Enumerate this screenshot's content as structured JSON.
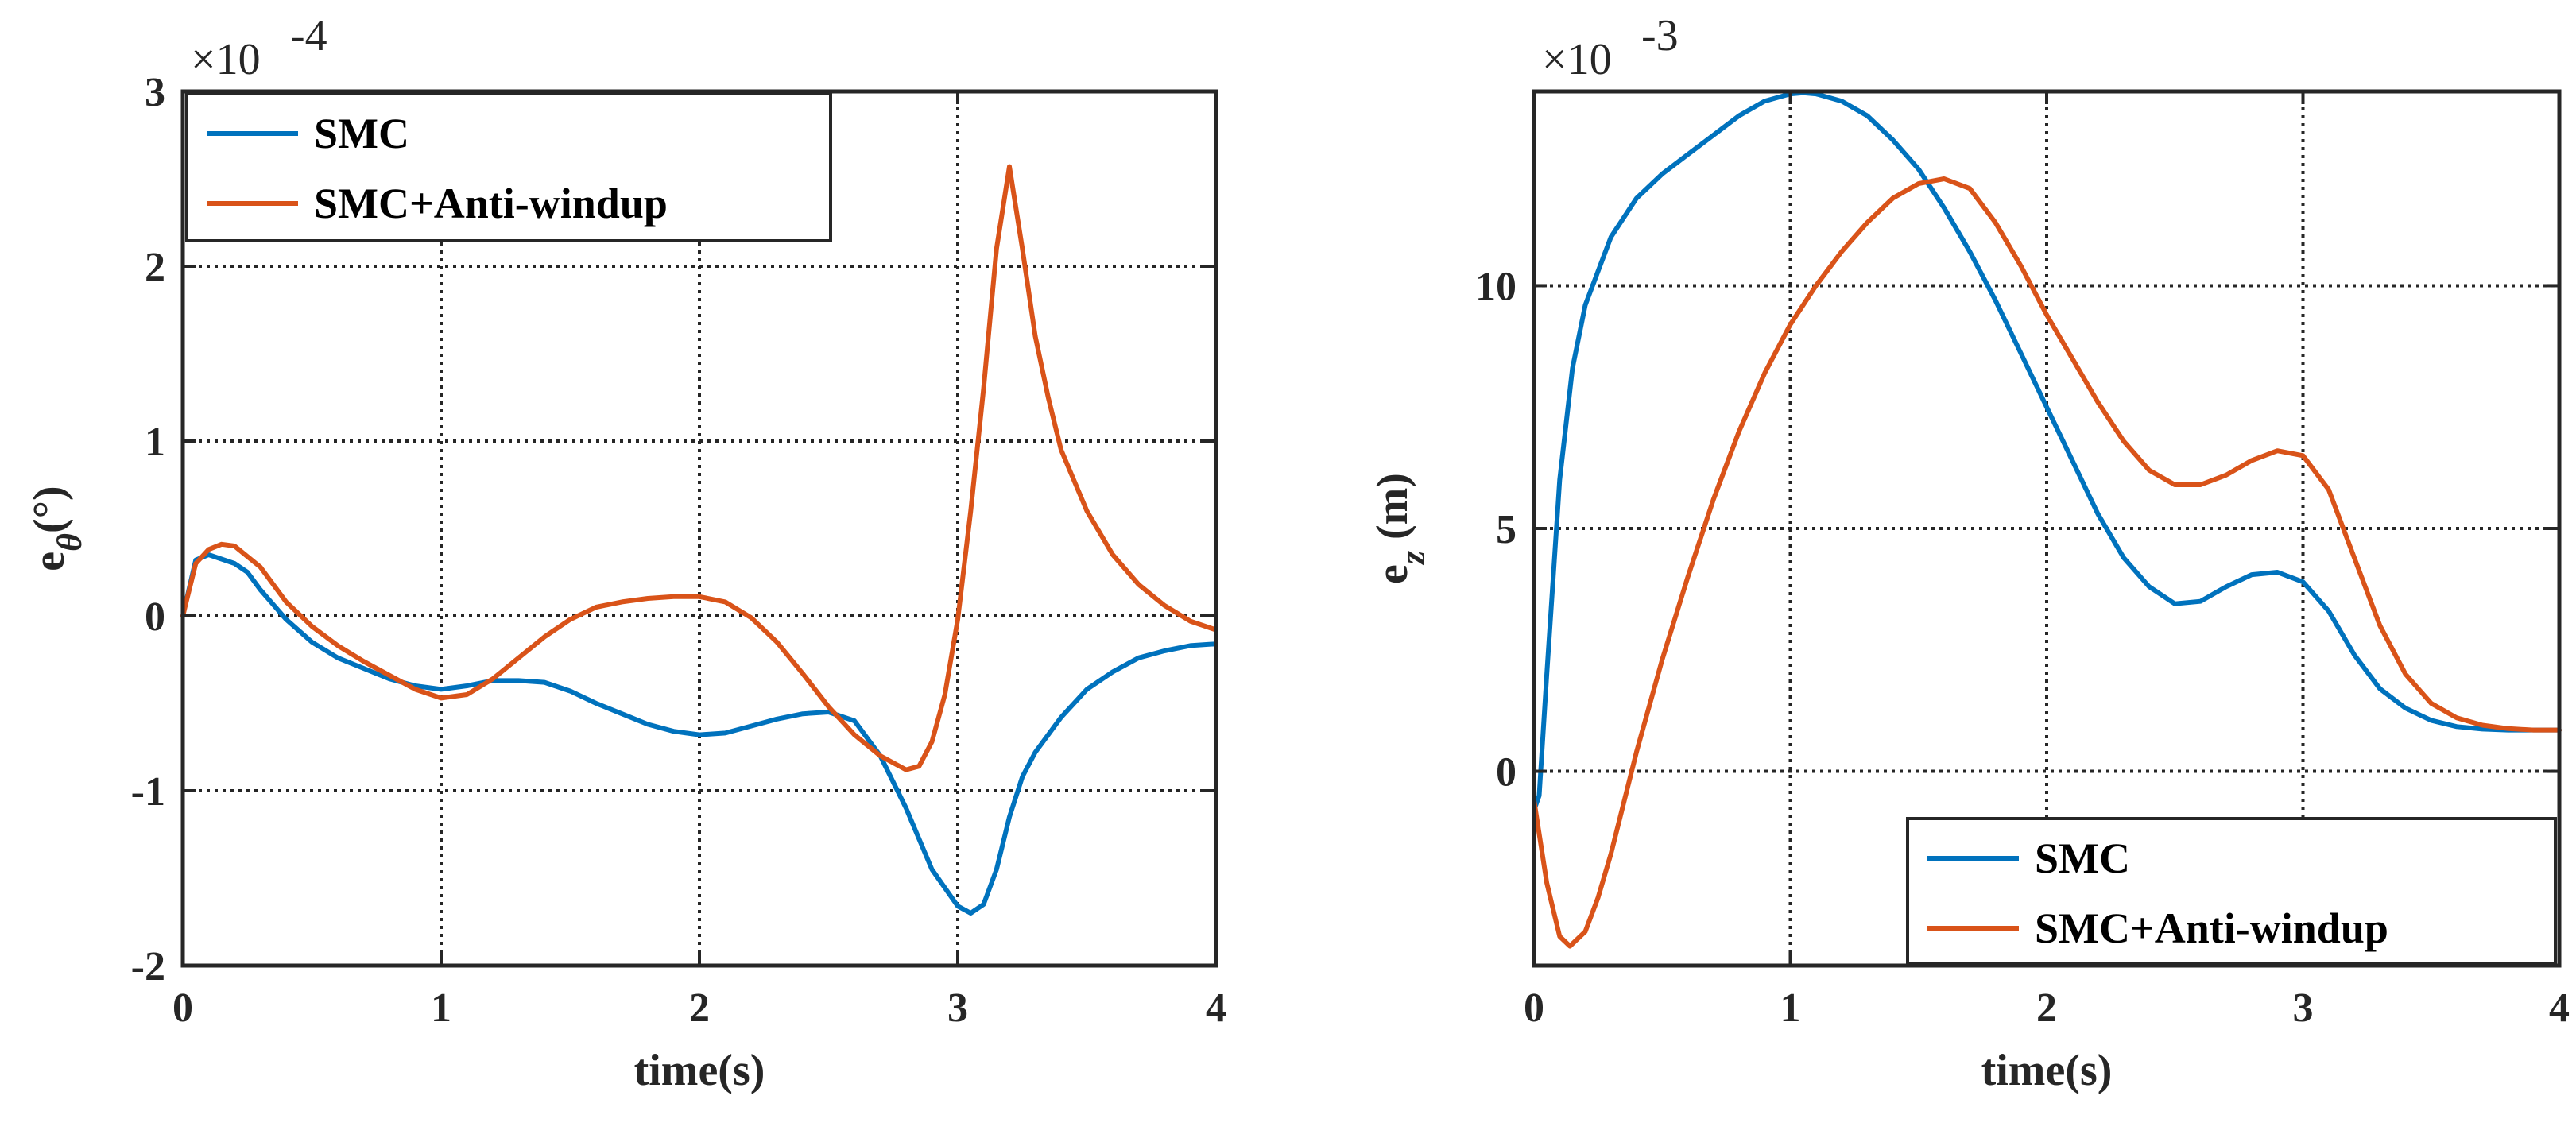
{
  "chart_data": [
    {
      "type": "line",
      "xlabel": "time(s)",
      "ylabel_base": "e",
      "ylabel_sub": "θ",
      "ylabel_unit": "(°)",
      "exponent_label": "×10",
      "exponent_power": "-4",
      "xlim": [
        0,
        4
      ],
      "ylim": [
        -2,
        3
      ],
      "xticks": [
        0,
        1,
        2,
        3,
        4
      ],
      "yticks": [
        -2,
        -1,
        0,
        1,
        2,
        3
      ],
      "grid": true,
      "legend_position": "top-left",
      "series": [
        {
          "name": "SMC",
          "color": "#0072BD",
          "x": [
            0,
            0.05,
            0.1,
            0.2,
            0.25,
            0.3,
            0.4,
            0.5,
            0.6,
            0.7,
            0.8,
            0.9,
            1.0,
            1.1,
            1.2,
            1.3,
            1.4,
            1.5,
            1.6,
            1.7,
            1.8,
            1.9,
            2.0,
            2.1,
            2.2,
            2.3,
            2.4,
            2.5,
            2.6,
            2.7,
            2.8,
            2.9,
            3.0,
            3.05,
            3.1,
            3.15,
            3.2,
            3.25,
            3.3,
            3.4,
            3.5,
            3.6,
            3.7,
            3.8,
            3.9,
            4.0
          ],
          "y": [
            0.0,
            0.32,
            0.35,
            0.3,
            0.25,
            0.15,
            -0.02,
            -0.15,
            -0.24,
            -0.3,
            -0.36,
            -0.4,
            -0.42,
            -0.4,
            -0.37,
            -0.37,
            -0.38,
            -0.43,
            -0.5,
            -0.56,
            -0.62,
            -0.66,
            -0.68,
            -0.67,
            -0.63,
            -0.59,
            -0.56,
            -0.55,
            -0.6,
            -0.8,
            -1.1,
            -1.45,
            -1.66,
            -1.7,
            -1.65,
            -1.45,
            -1.15,
            -0.92,
            -0.78,
            -0.58,
            -0.42,
            -0.32,
            -0.24,
            -0.2,
            -0.17,
            -0.16
          ]
        },
        {
          "name": "SMC+Anti-windup",
          "color": "#D95319",
          "x": [
            0,
            0.05,
            0.1,
            0.15,
            0.2,
            0.3,
            0.4,
            0.5,
            0.6,
            0.7,
            0.8,
            0.9,
            1.0,
            1.1,
            1.2,
            1.3,
            1.4,
            1.5,
            1.6,
            1.7,
            1.8,
            1.9,
            2.0,
            2.1,
            2.2,
            2.3,
            2.4,
            2.5,
            2.6,
            2.7,
            2.8,
            2.85,
            2.9,
            2.95,
            3.0,
            3.05,
            3.1,
            3.15,
            3.2,
            3.25,
            3.3,
            3.35,
            3.4,
            3.5,
            3.6,
            3.7,
            3.8,
            3.9,
            4.0
          ],
          "y": [
            0.0,
            0.3,
            0.38,
            0.41,
            0.4,
            0.28,
            0.08,
            -0.06,
            -0.17,
            -0.26,
            -0.34,
            -0.42,
            -0.47,
            -0.45,
            -0.36,
            -0.24,
            -0.12,
            -0.02,
            0.05,
            0.08,
            0.1,
            0.11,
            0.11,
            0.08,
            -0.01,
            -0.15,
            -0.33,
            -0.52,
            -0.68,
            -0.8,
            -0.88,
            -0.86,
            -0.72,
            -0.45,
            -0.02,
            0.6,
            1.3,
            2.1,
            2.57,
            2.1,
            1.6,
            1.25,
            0.95,
            0.6,
            0.35,
            0.18,
            0.06,
            -0.03,
            -0.08
          ]
        }
      ]
    },
    {
      "type": "line",
      "xlabel": "time(s)",
      "ylabel_base": "e",
      "ylabel_sub": "z",
      "ylabel_unit": " (m)",
      "exponent_label": "×10",
      "exponent_power": "-3",
      "xlim": [
        0,
        4
      ],
      "ylim": [
        -4,
        14
      ],
      "xticks": [
        0,
        1,
        2,
        3,
        4
      ],
      "yticks": [
        0,
        5,
        10
      ],
      "grid": true,
      "legend_position": "bottom-right",
      "series": [
        {
          "name": "SMC",
          "color": "#0072BD",
          "x": [
            0,
            0.02,
            0.05,
            0.1,
            0.15,
            0.2,
            0.3,
            0.4,
            0.5,
            0.6,
            0.7,
            0.8,
            0.9,
            1.0,
            1.05,
            1.1,
            1.2,
            1.3,
            1.4,
            1.5,
            1.6,
            1.7,
            1.8,
            1.9,
            2.0,
            2.1,
            2.2,
            2.3,
            2.4,
            2.5,
            2.6,
            2.7,
            2.8,
            2.9,
            3.0,
            3.1,
            3.2,
            3.3,
            3.4,
            3.5,
            3.6,
            3.7,
            3.8,
            3.9,
            4.0
          ],
          "y": [
            -0.8,
            -0.5,
            2.0,
            6.0,
            8.3,
            9.6,
            11.0,
            11.8,
            12.3,
            12.7,
            13.1,
            13.5,
            13.8,
            13.95,
            13.97,
            13.95,
            13.8,
            13.5,
            13.0,
            12.4,
            11.6,
            10.7,
            9.7,
            8.6,
            7.5,
            6.4,
            5.3,
            4.4,
            3.8,
            3.45,
            3.5,
            3.8,
            4.05,
            4.1,
            3.9,
            3.3,
            2.4,
            1.7,
            1.3,
            1.05,
            0.92,
            0.87,
            0.85,
            0.85,
            0.85
          ]
        },
        {
          "name": "SMC+Anti-windup",
          "color": "#D95319",
          "x": [
            0,
            0.05,
            0.1,
            0.14,
            0.2,
            0.25,
            0.3,
            0.4,
            0.5,
            0.6,
            0.7,
            0.8,
            0.9,
            1.0,
            1.1,
            1.2,
            1.3,
            1.4,
            1.5,
            1.6,
            1.7,
            1.8,
            1.9,
            2.0,
            2.1,
            2.2,
            2.3,
            2.4,
            2.5,
            2.6,
            2.7,
            2.8,
            2.9,
            3.0,
            3.1,
            3.2,
            3.3,
            3.4,
            3.5,
            3.6,
            3.7,
            3.8,
            3.9,
            4.0
          ],
          "y": [
            -0.6,
            -2.3,
            -3.4,
            -3.6,
            -3.3,
            -2.6,
            -1.7,
            0.4,
            2.3,
            4.0,
            5.6,
            7.0,
            8.2,
            9.2,
            10.0,
            10.7,
            11.3,
            11.8,
            12.1,
            12.2,
            12.0,
            11.3,
            10.4,
            9.4,
            8.5,
            7.6,
            6.8,
            6.2,
            5.9,
            5.9,
            6.1,
            6.4,
            6.6,
            6.5,
            5.8,
            4.4,
            3.0,
            2.0,
            1.4,
            1.1,
            0.95,
            0.88,
            0.85,
            0.85
          ]
        }
      ]
    }
  ]
}
